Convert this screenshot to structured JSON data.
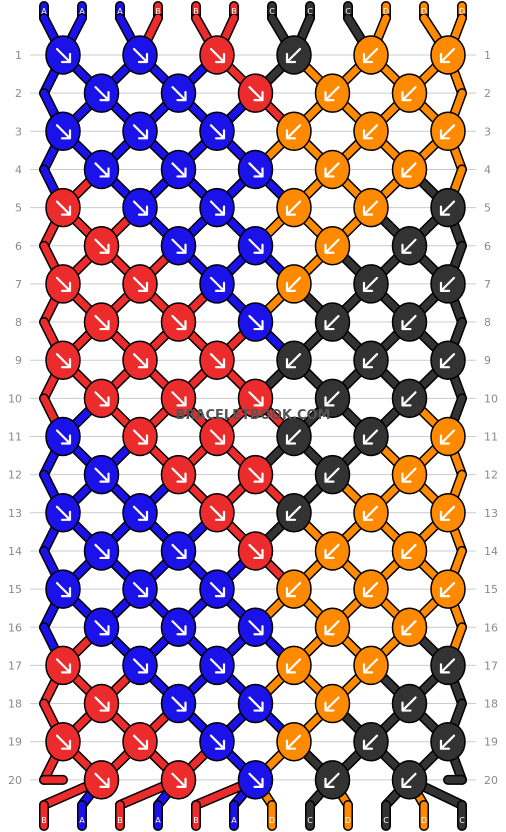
{
  "watermark": "BRACELETBOOK.COM",
  "colors": {
    "A": "#1a12e8",
    "B": "#ec2c2c",
    "C": "#333333",
    "D": "#ff8a00",
    "outline": "#000000",
    "grid": "#cccccc",
    "label": "#8a8a8a"
  },
  "strands_top": [
    "A",
    "A",
    "A",
    "B",
    "B",
    "B",
    "C",
    "C",
    "C",
    "D",
    "D",
    "D"
  ],
  "strands_bottom": [
    "B",
    "A",
    "B",
    "A",
    "B",
    "A",
    "D",
    "C",
    "D",
    "C",
    "D",
    "C"
  ],
  "row_numbers": [
    "1",
    "2",
    "3",
    "4",
    "5",
    "6",
    "7",
    "8",
    "9",
    "10",
    "11",
    "12",
    "13",
    "14",
    "15",
    "16",
    "17",
    "18",
    "19",
    "20"
  ],
  "knot_rows": [
    [
      {
        "c": "A",
        "d": "se"
      },
      {
        "c": "A",
        "d": "se"
      },
      {
        "c": "B",
        "d": "se"
      },
      {
        "c": "C",
        "d": "sw"
      },
      {
        "c": "D",
        "d": "sw"
      },
      {
        "c": "D",
        "d": "sw"
      }
    ],
    [
      {
        "c": "A",
        "d": "se"
      },
      {
        "c": "A",
        "d": "se"
      },
      {
        "c": "B",
        "d": "se"
      },
      {
        "c": "D",
        "d": "sw"
      },
      {
        "c": "D",
        "d": "sw"
      }
    ],
    [
      {
        "c": "A",
        "d": "se"
      },
      {
        "c": "A",
        "d": "se"
      },
      {
        "c": "A",
        "d": "se"
      },
      {
        "c": "D",
        "d": "sw"
      },
      {
        "c": "D",
        "d": "sw"
      },
      {
        "c": "D",
        "d": "sw"
      }
    ],
    [
      {
        "c": "A",
        "d": "se"
      },
      {
        "c": "A",
        "d": "se"
      },
      {
        "c": "A",
        "d": "se"
      },
      {
        "c": "D",
        "d": "sw"
      },
      {
        "c": "D",
        "d": "sw"
      }
    ],
    [
      {
        "c": "B",
        "d": "se"
      },
      {
        "c": "A",
        "d": "se"
      },
      {
        "c": "A",
        "d": "se"
      },
      {
        "c": "D",
        "d": "sw"
      },
      {
        "c": "D",
        "d": "sw"
      },
      {
        "c": "C",
        "d": "sw"
      }
    ],
    [
      {
        "c": "B",
        "d": "se"
      },
      {
        "c": "A",
        "d": "se"
      },
      {
        "c": "A",
        "d": "se"
      },
      {
        "c": "D",
        "d": "sw"
      },
      {
        "c": "C",
        "d": "sw"
      }
    ],
    [
      {
        "c": "B",
        "d": "se"
      },
      {
        "c": "B",
        "d": "se"
      },
      {
        "c": "A",
        "d": "se"
      },
      {
        "c": "D",
        "d": "sw"
      },
      {
        "c": "C",
        "d": "sw"
      },
      {
        "c": "C",
        "d": "sw"
      }
    ],
    [
      {
        "c": "B",
        "d": "se"
      },
      {
        "c": "B",
        "d": "se"
      },
      {
        "c": "A",
        "d": "se"
      },
      {
        "c": "C",
        "d": "sw"
      },
      {
        "c": "C",
        "d": "sw"
      }
    ],
    [
      {
        "c": "B",
        "d": "se"
      },
      {
        "c": "B",
        "d": "se"
      },
      {
        "c": "B",
        "d": "se"
      },
      {
        "c": "C",
        "d": "sw"
      },
      {
        "c": "C",
        "d": "sw"
      },
      {
        "c": "C",
        "d": "sw"
      }
    ],
    [
      {
        "c": "B",
        "d": "se"
      },
      {
        "c": "B",
        "d": "se"
      },
      {
        "c": "B",
        "d": "se"
      },
      {
        "c": "C",
        "d": "sw"
      },
      {
        "c": "C",
        "d": "sw"
      }
    ],
    [
      {
        "c": "A",
        "d": "se"
      },
      {
        "c": "B",
        "d": "se"
      },
      {
        "c": "B",
        "d": "se"
      },
      {
        "c": "C",
        "d": "sw"
      },
      {
        "c": "C",
        "d": "sw"
      },
      {
        "c": "D",
        "d": "sw"
      }
    ],
    [
      {
        "c": "A",
        "d": "se"
      },
      {
        "c": "B",
        "d": "se"
      },
      {
        "c": "B",
        "d": "se"
      },
      {
        "c": "C",
        "d": "sw"
      },
      {
        "c": "D",
        "d": "sw"
      }
    ],
    [
      {
        "c": "A",
        "d": "se"
      },
      {
        "c": "A",
        "d": "se"
      },
      {
        "c": "B",
        "d": "se"
      },
      {
        "c": "C",
        "d": "sw"
      },
      {
        "c": "D",
        "d": "sw"
      },
      {
        "c": "D",
        "d": "sw"
      }
    ],
    [
      {
        "c": "A",
        "d": "se"
      },
      {
        "c": "A",
        "d": "se"
      },
      {
        "c": "B",
        "d": "se"
      },
      {
        "c": "D",
        "d": "sw"
      },
      {
        "c": "D",
        "d": "sw"
      }
    ],
    [
      {
        "c": "A",
        "d": "se"
      },
      {
        "c": "A",
        "d": "se"
      },
      {
        "c": "A",
        "d": "se"
      },
      {
        "c": "D",
        "d": "sw"
      },
      {
        "c": "D",
        "d": "sw"
      },
      {
        "c": "D",
        "d": "sw"
      }
    ],
    [
      {
        "c": "A",
        "d": "se"
      },
      {
        "c": "A",
        "d": "se"
      },
      {
        "c": "A",
        "d": "se"
      },
      {
        "c": "D",
        "d": "sw"
      },
      {
        "c": "D",
        "d": "sw"
      }
    ],
    [
      {
        "c": "B",
        "d": "se"
      },
      {
        "c": "A",
        "d": "se"
      },
      {
        "c": "A",
        "d": "se"
      },
      {
        "c": "D",
        "d": "sw"
      },
      {
        "c": "D",
        "d": "sw"
      },
      {
        "c": "C",
        "d": "sw"
      }
    ],
    [
      {
        "c": "B",
        "d": "se"
      },
      {
        "c": "A",
        "d": "se"
      },
      {
        "c": "A",
        "d": "se"
      },
      {
        "c": "D",
        "d": "sw"
      },
      {
        "c": "C",
        "d": "sw"
      }
    ],
    [
      {
        "c": "B",
        "d": "se"
      },
      {
        "c": "B",
        "d": "se"
      },
      {
        "c": "A",
        "d": "se"
      },
      {
        "c": "D",
        "d": "sw"
      },
      {
        "c": "C",
        "d": "sw"
      },
      {
        "c": "C",
        "d": "sw"
      }
    ],
    [
      {
        "c": "B",
        "d": "se"
      },
      {
        "c": "B",
        "d": "se"
      },
      {
        "c": "A",
        "d": "se"
      },
      {
        "c": "C",
        "d": "sw"
      },
      {
        "c": "C",
        "d": "sw"
      }
    ]
  ]
}
